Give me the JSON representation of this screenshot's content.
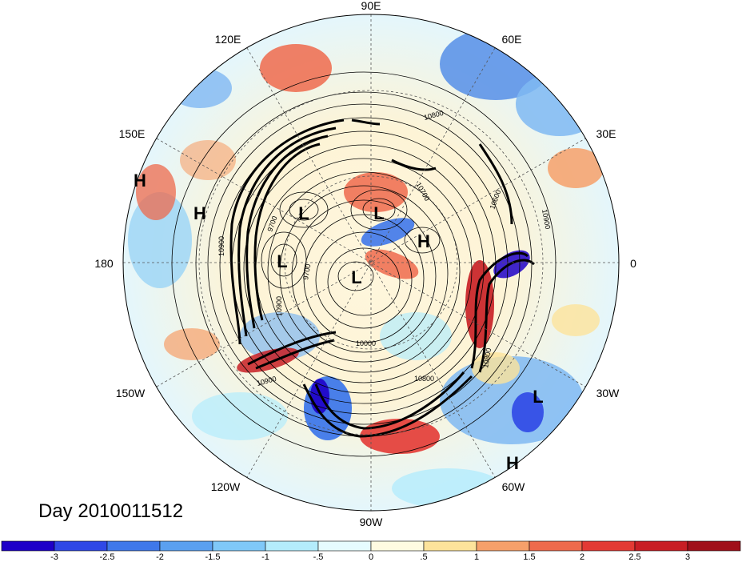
{
  "title": "Day 2010011512",
  "longitude_labels": {
    "top": "90E",
    "upper_left": "120E",
    "upper_right": "60E",
    "left_upper": "150E",
    "right_upper": "30E",
    "left": "180",
    "right": "0",
    "left_lower": "150W",
    "right_lower": "30W",
    "lower_left": "120W",
    "lower_right": "60W",
    "bottom": "90W"
  },
  "pressure_centers": [
    "H",
    "H",
    "L",
    "L",
    "L",
    "L",
    "H",
    "L",
    "H"
  ],
  "contour_labels": [
    "10800",
    "10700",
    "10600",
    "10900",
    "9700",
    "9700",
    "10900",
    "10000",
    "10800",
    "10900",
    "10800",
    "10900"
  ],
  "colorbar": {
    "ticks": [
      "-3",
      "-2.5",
      "-2",
      "-1.5",
      "-1",
      "-.5",
      "0",
      ".5",
      "1",
      "1.5",
      "2",
      "2.5",
      "3"
    ],
    "colors": [
      "#1e00c8",
      "#2f48e6",
      "#3f78ea",
      "#5aa0f0",
      "#7fc8f8",
      "#b4ecfc",
      "#e6fcff",
      "#fffbe1",
      "#fde39b",
      "#f6a06a",
      "#ee6a4c",
      "#e33a34",
      "#c81e24",
      "#a0101a"
    ]
  }
}
